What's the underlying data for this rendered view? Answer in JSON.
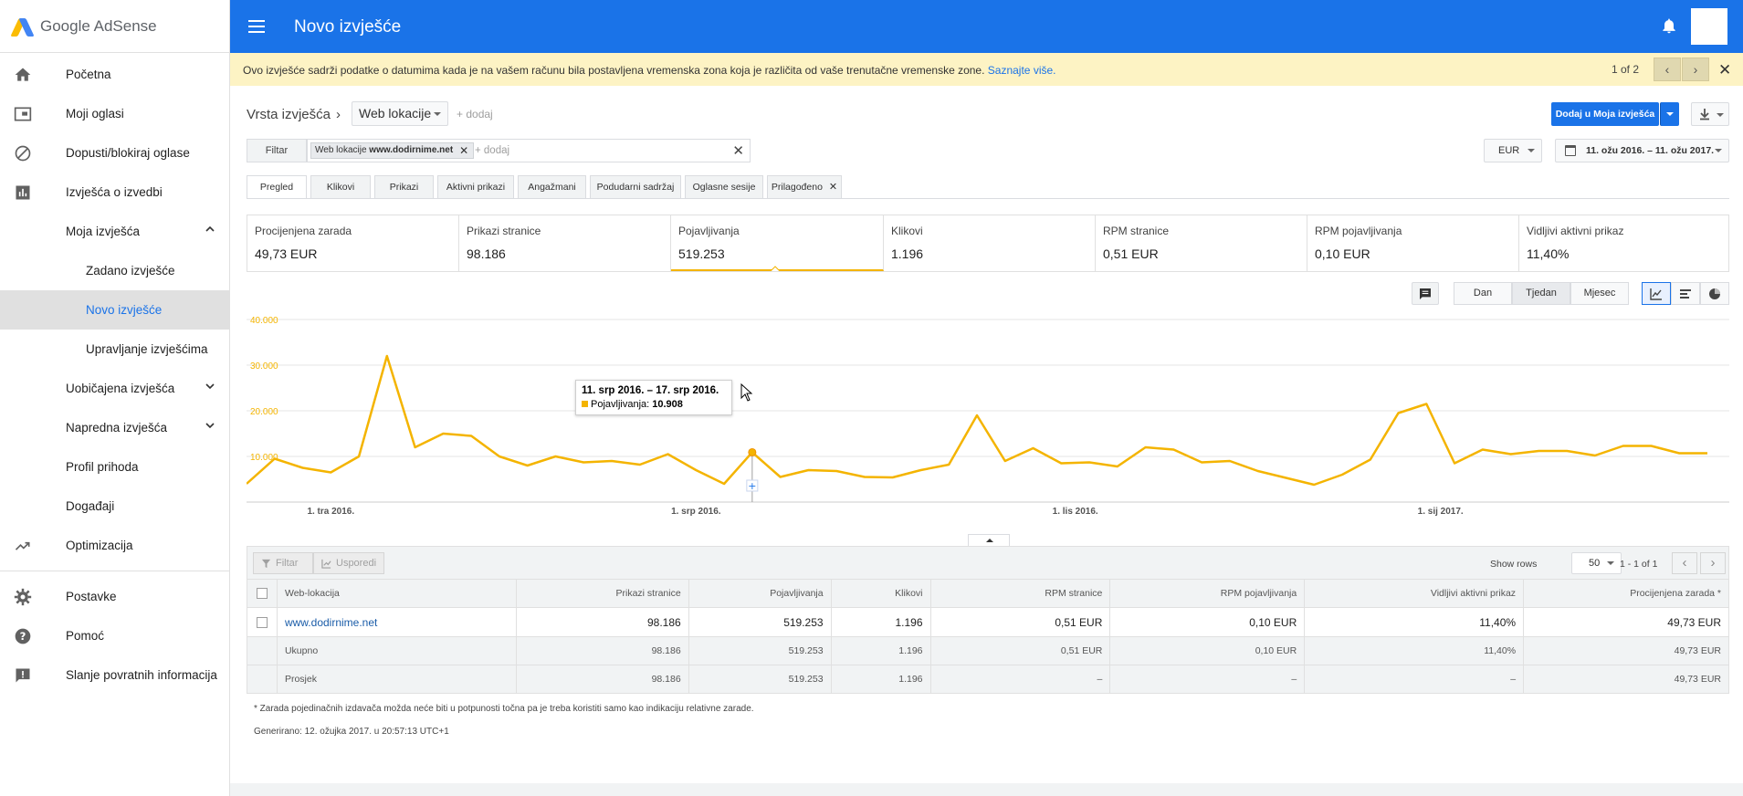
{
  "app": {
    "logo_text": "Google AdSense",
    "page_title": "Novo izvješće"
  },
  "colors": {
    "brand_blue": "#1a73e8",
    "accent_yellow": "#f4b400",
    "notice_bg": "#fdf3c4"
  },
  "sidebar": {
    "items": [
      {
        "label": "Početna",
        "icon": "home-icon"
      },
      {
        "label": "Moji oglasi",
        "icon": "ads-icon"
      },
      {
        "label": "Dopusti/blokiraj oglase",
        "icon": "block-icon"
      },
      {
        "label": "Izvješća o izvedbi",
        "icon": "bar-chart-icon"
      },
      {
        "label": "Moja izvješća",
        "icon": "chevron-up-icon"
      },
      {
        "label": "Zadano izvješće"
      },
      {
        "label": "Novo izvješće"
      },
      {
        "label": "Upravljanje izvješćima"
      },
      {
        "label": "Uobičajena izvješća",
        "icon": "chevron-down-icon"
      },
      {
        "label": "Napredna izvješća",
        "icon": "chevron-down-icon"
      },
      {
        "label": "Profil prihoda"
      },
      {
        "label": "Događaji"
      },
      {
        "label": "Optimizacija",
        "icon": "trending-up-icon"
      },
      {
        "label": "Postavke",
        "icon": "gear-icon"
      },
      {
        "label": "Pomoć",
        "icon": "help-icon"
      },
      {
        "label": "Slanje povratnih informacija",
        "icon": "feedback-icon"
      }
    ]
  },
  "notice": {
    "text": "Ovo izvješće sadrži podatke o datumima kada je na vašem računu bila postavljena vremenska zona koja je različita od vaše trenutačne vremenske zone.",
    "link": "Saznajte više.",
    "pages": "1 of 2"
  },
  "report": {
    "type_label": "Vrsta izvješća",
    "type_value": "Web lokacije",
    "add": "+ dodaj",
    "primary_button": "Dodaj u Moja izvješća",
    "filter_label": "Filtar",
    "chip_prefix": "Web lokacije",
    "chip_value": "www.dodirnime.net",
    "filter_add": "+ dodaj",
    "currency": "EUR",
    "date_range": "11. ožu 2016. – 11. ožu 2017."
  },
  "tabs": [
    "Pregled",
    "Klikovi",
    "Prikazi",
    "Aktivni prikazi",
    "Angažmani",
    "Podudarni sadržaj",
    "Oglasne sesije",
    "Prilagođeno"
  ],
  "metrics": [
    {
      "label": "Procijenjena zarada",
      "value": "49,73 EUR"
    },
    {
      "label": "Prikazi stranice",
      "value": "98.186"
    },
    {
      "label": "Pojavljivanja",
      "value": "519.253"
    },
    {
      "label": "Klikovi",
      "value": "1.196"
    },
    {
      "label": "RPM stranice",
      "value": "0,51 EUR"
    },
    {
      "label": "RPM pojavljivanja",
      "value": "0,10 EUR"
    },
    {
      "label": "Vidljivi aktivni prikaz",
      "value": "11,40%"
    }
  ],
  "period": {
    "day": "Dan",
    "week": "Tjedan",
    "month": "Mjesec",
    "selected": "Tjedan"
  },
  "chart_data": {
    "type": "line",
    "series": [
      {
        "name": "Pojavljivanja",
        "values": [
          4000,
          9500,
          7500,
          6500,
          10000,
          32000,
          12000,
          15000,
          14500,
          10000,
          8000,
          10000,
          8700,
          9000,
          8200,
          10500,
          7000,
          4000,
          10908,
          5500,
          7000,
          6800,
          5500,
          5400,
          7000,
          8200,
          19000,
          9000,
          11800,
          8500,
          8700,
          7800,
          12000,
          11500,
          8700,
          9000,
          6800,
          5300,
          3800,
          6000,
          9300,
          19500,
          21500,
          8500,
          11500,
          10500,
          11200,
          11200,
          10200,
          12300,
          12300,
          10700,
          10700
        ]
      }
    ],
    "y_ticks": [
      "40.000",
      "30.000",
      "20.000",
      "10.000"
    ],
    "ylim": [
      0,
      40000
    ],
    "x_ticks": [
      {
        "label": "1. tra 2016.",
        "index": 3
      },
      {
        "label": "1. srp 2016.",
        "index": 16
      },
      {
        "label": "1. lis 2016.",
        "index": 29.5
      },
      {
        "label": "1. sij 2017.",
        "index": 42.5
      }
    ],
    "highlight_index": 18,
    "tooltip": {
      "date": "11. srp 2016. – 17. srp 2016.",
      "label": "Pojavljivanja:",
      "value": "10.908"
    },
    "grid": true
  },
  "table": {
    "toolbar": {
      "filter": "Filtar",
      "compare": "Usporedi",
      "show_rows": "Show rows",
      "rows": "50",
      "range": "1 - 1 of 1"
    },
    "headers": [
      "Web-lokacija",
      "Prikazi stranice",
      "Pojavljivanja",
      "Klikovi",
      "RPM stranice",
      "RPM pojavljivanja",
      "Vidljivi aktivni prikaz",
      "Procijenjena zarada *"
    ],
    "row": [
      "www.dodirnime.net",
      "98.186",
      "519.253",
      "1.196",
      "0,51 EUR",
      "0,10 EUR",
      "11,40%",
      "49,73 EUR"
    ],
    "total": [
      "Ukupno",
      "98.186",
      "519.253",
      "1.196",
      "0,51 EUR",
      "0,10 EUR",
      "11,40%",
      "49,73 EUR"
    ],
    "average": [
      "Prosjek",
      "98.186",
      "519.253",
      "1.196",
      "–",
      "–",
      "–",
      "49,73 EUR"
    ]
  },
  "footnote": "* Zarada pojedinačnih izdavača možda neće biti u potpunosti točna pa je treba koristiti samo kao indikaciju relativne zarade.",
  "generated": "Generirano: 12. ožujka 2017. u 20:57:13 UTC+1"
}
